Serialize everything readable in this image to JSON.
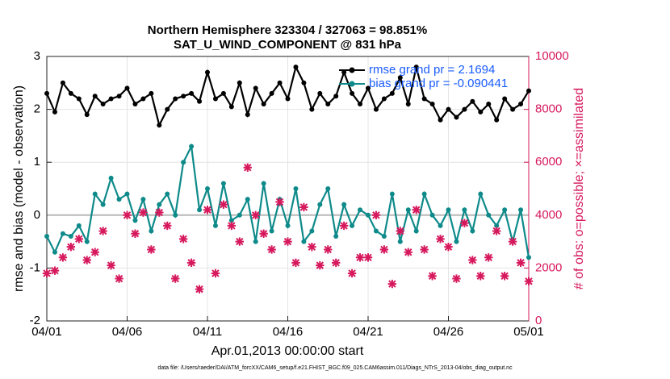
{
  "chart_data": {
    "type": "line",
    "title": "Northern Hemisphere 323304 / 327063 = 98.851%",
    "subtitle": "SAT_U_WIND_COMPONENT @ 831 hPa",
    "xlabel": "Apr.01,2013 00:00:00 start",
    "ylabel": "rmse and bias (model - observation)",
    "y2label": "# of obs: o=possible; ×=assimilated",
    "footnote": "data file: /Users/raeder/DAI/ATM_forcXX/CAM6_setup/f.e21.FHIST_BGC.f09_025.CAM6assim.011/Diags_NTrS_2013-04/obs_diag_output.nc",
    "x": [
      0,
      0.5,
      1,
      1.5,
      2,
      2.5,
      3,
      3.5,
      4,
      4.5,
      5,
      5.5,
      6,
      6.5,
      7,
      7.5,
      8,
      8.5,
      9,
      9.5,
      10,
      10.5,
      11,
      11.5,
      12,
      12.5,
      13,
      13.5,
      14,
      14.5,
      15,
      15.5,
      16,
      16.5,
      17,
      17.5,
      18,
      18.5,
      19,
      19.5,
      20,
      20.5,
      21,
      21.5,
      22,
      22.5,
      23,
      23.5,
      24,
      24.5,
      25,
      25.5,
      26,
      26.5,
      27,
      27.5,
      28,
      28.5,
      29,
      29.5,
      30
    ],
    "xlim": [
      0,
      30
    ],
    "xticks": [
      {
        "value": 0,
        "label": "04/01"
      },
      {
        "value": 5,
        "label": "04/06"
      },
      {
        "value": 10,
        "label": "04/11"
      },
      {
        "value": 15,
        "label": "04/16"
      },
      {
        "value": 20,
        "label": "04/21"
      },
      {
        "value": 25,
        "label": "04/26"
      },
      {
        "value": 30,
        "label": "05/01"
      }
    ],
    "ylim": [
      -2,
      3
    ],
    "yticks": [
      -2,
      -1,
      0,
      1,
      2,
      3
    ],
    "y2lim": [
      0,
      10000
    ],
    "y2ticks": [
      0,
      2000,
      4000,
      6000,
      8000,
      10000
    ],
    "grid": true,
    "legend": "upper right",
    "series": [
      {
        "name": "rmse grand pr = 2.1694",
        "color": "#000000",
        "values": [
          2.3,
          1.95,
          2.5,
          2.3,
          2.2,
          1.9,
          2.25,
          2.1,
          2.2,
          2.25,
          2.4,
          2.1,
          2.2,
          2.3,
          1.7,
          2.0,
          2.2,
          2.25,
          2.3,
          2.15,
          2.7,
          2.2,
          2.3,
          2.05,
          2.5,
          1.9,
          2.4,
          2.1,
          2.3,
          2.5,
          2.2,
          2.8,
          2.5,
          2.0,
          2.3,
          2.1,
          2.25,
          2.7,
          2.3,
          2.1,
          2.4,
          2.0,
          2.2,
          2.3,
          2.6,
          2.1,
          2.8,
          2.2,
          2.1,
          1.8,
          2.0,
          1.85,
          2.0,
          2.15,
          1.95,
          2.1,
          1.8,
          2.2,
          2.0,
          2.1,
          2.35
        ]
      },
      {
        "name": "bias grand pr = -0.090441",
        "color": "#0e8a8a",
        "values": [
          -0.4,
          -0.7,
          -0.35,
          -0.4,
          -0.2,
          -0.5,
          0.4,
          0.2,
          0.7,
          0.3,
          0.4,
          -0.1,
          0.3,
          -0.3,
          0.2,
          0.4,
          0.0,
          1.0,
          1.3,
          0.1,
          0.5,
          -0.2,
          0.6,
          -0.1,
          0.0,
          0.3,
          -0.5,
          0.6,
          -0.3,
          0.3,
          -0.2,
          0.5,
          -0.5,
          -0.3,
          0.2,
          0.5,
          -0.4,
          0.2,
          -0.2,
          0.1,
          0.0,
          -0.3,
          -0.4,
          0.4,
          -0.5,
          0.1,
          -0.3,
          0.4,
          0.0,
          -0.2,
          0.1,
          -0.5,
          0.1,
          -0.3,
          0.4,
          0.0,
          -0.2,
          0.1,
          -0.5,
          0.1,
          -0.8
        ]
      },
      {
        "color": "#d6185c",
        "axis": "y2",
        "values": [
          1800,
          1900,
          2400,
          2800,
          3100,
          2300,
          2600,
          3400,
          2100,
          1600,
          4000,
          3300,
          4100,
          2700,
          4100,
          3600,
          1600,
          3100,
          2200,
          1200,
          4200,
          1800,
          4400,
          3600,
          3000,
          5800,
          4000,
          3300,
          2700,
          4500,
          3000,
          2200,
          4300,
          2800,
          2100,
          2700,
          2200,
          3600,
          1800,
          2400,
          2400,
          4000,
          2700,
          1400,
          3400,
          2600,
          4200,
          2700,
          1700,
          3100,
          2800,
          1600,
          3700,
          2300,
          1700,
          2400,
          3400,
          1700,
          3000,
          2200,
          1500
        ]
      }
    ]
  }
}
